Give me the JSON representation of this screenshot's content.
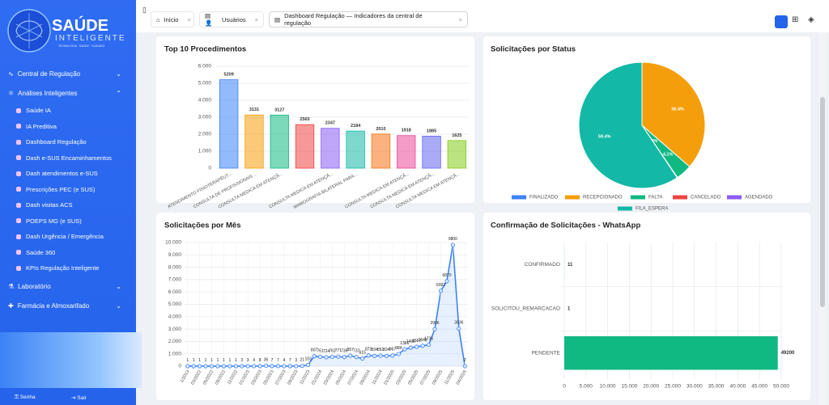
{
  "sidebar": {
    "logo_title": "SAÚDE",
    "logo_subtitle": "INTELIGENTE",
    "logo_tagline": "TECNOLOGIA · SAÚDE · CUIDADO",
    "menu": [
      "Central de Regulação",
      "Análises Inteligentes"
    ],
    "submenu": [
      "Saúde IA",
      "IA Preditiva",
      "Dashboard Regulação",
      "Dash e-SUS Encaminhamentos",
      "Dash atendimentos e-SUS",
      "Prescrições PEC (e SUS)",
      "Dash visitas ACS",
      "POEPS MG (e SUS)",
      "Dash Urgência / Emergência",
      "Saúde 360",
      "KPIs Regulação Inteligente"
    ],
    "menu_bottom": [
      "Laboratório",
      "Farmácia e Almoxarifado"
    ],
    "footer": [
      "Senha",
      "Sair"
    ]
  },
  "tabs": [
    "Início",
    "Usuários",
    "Dashboard Regulação — Indicadores da central de regulação"
  ],
  "chart_data": [
    {
      "type": "bar",
      "title": "Top 10 Procedimentos",
      "categories": [
        "ATENDIMENTO FISIOTERAPÊUT...",
        "CONSULTA DE PROFISSIONAIS ...",
        "CONSULTA MEDICA EM ATENÇÃ...",
        null,
        "CONSULTA MEDICA EM ATENÇÃ...",
        "MAMOGRAFIA BILATERAL PARA ...",
        null,
        "CONSULTA MEDICA EM ATENÇÃ...",
        "CONSULTA MEDICA EM ATENÇÃ...",
        "CONSULTA MEDICA EM ATENÇÃ..."
      ],
      "values": [
        5209,
        3131,
        3127,
        2565,
        2347,
        2184,
        2010,
        1918,
        1885,
        1625
      ],
      "colors": [
        "#3b82f6",
        "#f59e0b",
        "#10b981",
        "#ef4444",
        "#8b5cf6",
        "#14b8a6",
        "#f97316",
        "#ec4899",
        "#6366f1",
        "#84cc16"
      ],
      "ylim": [
        0,
        6000
      ],
      "yticks": [
        0,
        {
          "value": 1000,
          "label": "1.000"
        },
        {
          "value": 2000,
          "label": "2.000"
        },
        {
          "value": 3000,
          "label": "3.000"
        },
        {
          "value": 4000,
          "label": "4.000"
        },
        {
          "value": 5000,
          "label": "5.000"
        },
        {
          "value": 6000,
          "label": "6.000"
        }
      ],
      "grid": true
    },
    {
      "type": "pie",
      "title": "Solicitações por Status",
      "categories": [
        "FINALIZADO",
        "RECEPCIONADO",
        "FALTA",
        "CANCELADO",
        "AGENDADO",
        "FILA_ESPERA"
      ],
      "values": [
        0.0,
        36.4,
        4.1,
        0.1,
        0.0,
        59.4
      ],
      "value_labels": [
        "0.0%",
        "36.4%",
        "4.1%",
        "0.1%",
        "0.0%",
        "59.4%"
      ],
      "colors": [
        "#3b82f6",
        "#f59e0b",
        "#10b981",
        "#ef4444",
        "#8b5cf6",
        "#14b8a6"
      ],
      "legend": "bottom"
    },
    {
      "type": "line",
      "title": "Solicitações por Mês",
      "categories": [
        "1/2013",
        null,
        "03/2022",
        null,
        "05/2022",
        null,
        "09/2022",
        null,
        "11/2022",
        null,
        "01/2023",
        null,
        "03/2023",
        null,
        "05/2023",
        null,
        "07/2023",
        null,
        "09/2023",
        null,
        "11/2023",
        null,
        "01/2024",
        null,
        "03/2024",
        null,
        "05/2024",
        null,
        "07/2024",
        null,
        "09/2024",
        null,
        "11/2024",
        null,
        "01/2025",
        null,
        "03/2025",
        null,
        "05/2025",
        null,
        "07/2025",
        null,
        "09/2025",
        null,
        "11/2025",
        null,
        "04/2026"
      ],
      "values": [
        1,
        1,
        1,
        1,
        1,
        1,
        1,
        1,
        1,
        3,
        3,
        4,
        8,
        36,
        7,
        7,
        4,
        7,
        3,
        21,
        103,
        807,
        761,
        724,
        762,
        771,
        736,
        857,
        737,
        615,
        873,
        834,
        852,
        834,
        867,
        984,
        1366,
        1495,
        1567,
        1648,
        1736,
        2996,
        6092,
        6870,
        9800,
        3036,
        2
      ],
      "color": "#3b82f6",
      "ylim": [
        0,
        10000
      ],
      "yticks": [
        0,
        {
          "value": 1000,
          "label": "1.000"
        },
        {
          "value": 2000,
          "label": "2.000"
        },
        {
          "value": 3000,
          "label": "3.000"
        },
        {
          "value": 4000,
          "label": "4.000"
        },
        {
          "value": 5000,
          "label": "5.000"
        },
        {
          "value": 6000,
          "label": "6.000"
        },
        {
          "value": 7000,
          "label": "7.000"
        },
        {
          "value": 8000,
          "label": "8.000"
        },
        {
          "value": 9000,
          "label": "9.000"
        },
        {
          "value": 10000,
          "label": "10.000"
        }
      ],
      "grid": true
    },
    {
      "type": "bar",
      "horizontal": true,
      "title": "Confirmação de Solicitações - WhatsApp",
      "categories": [
        "CONFIRMADO",
        "SOLICITOU_REMARCACAO",
        "PENDENTE"
      ],
      "values": [
        11,
        1,
        49200
      ],
      "color": "#10b981",
      "xlim": [
        0,
        50000
      ],
      "xticks": [
        0,
        {
          "value": 5000,
          "label": "5.000"
        },
        {
          "value": 10000,
          "label": "10.000"
        },
        {
          "value": 15000,
          "label": "15.000"
        },
        {
          "value": 20000,
          "label": "20.000"
        },
        {
          "value": 25000,
          "label": "25.000"
        },
        {
          "value": 30000,
          "label": "30.000"
        },
        {
          "value": 35000,
          "label": "35.000"
        },
        {
          "value": 40000,
          "label": "40.000"
        },
        {
          "value": 45000,
          "label": "45.000"
        },
        {
          "value": 50000,
          "label": "50.000"
        }
      ],
      "grid": true
    }
  ]
}
